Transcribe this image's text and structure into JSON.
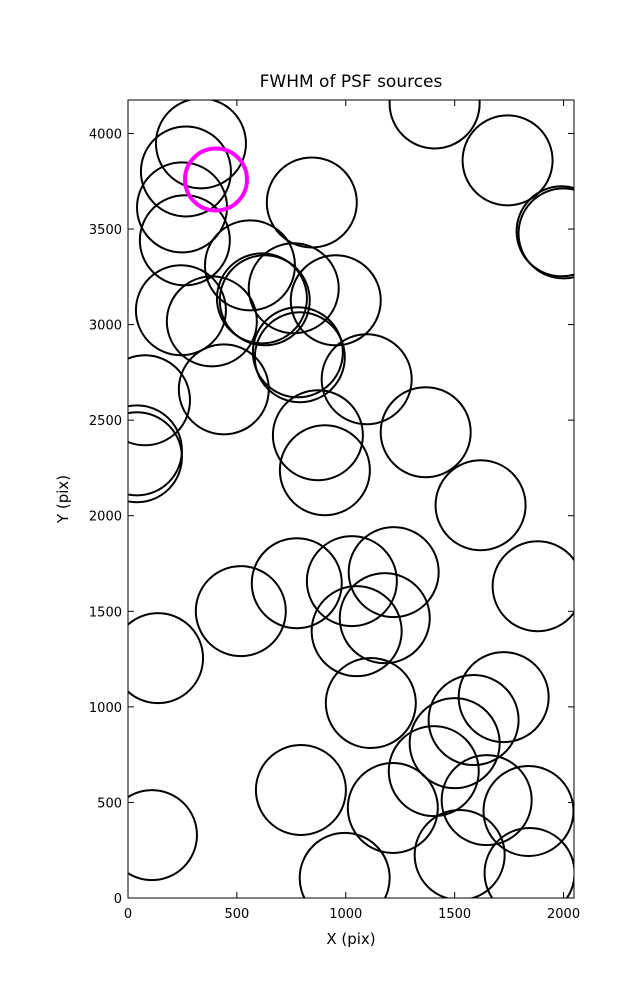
{
  "chart_data": {
    "type": "scatter",
    "title": "FWHM of PSF sources",
    "x_label": "X (pix)",
    "y_label": "Y (pix)",
    "xlim": [
      0,
      2048
    ],
    "ylim": [
      0,
      4175
    ],
    "xticks": [
      0,
      500,
      1000,
      1500,
      2000
    ],
    "yticks": [
      0,
      500,
      1000,
      1500,
      2000,
      2500,
      3000,
      3500,
      4000
    ],
    "series": [
      {
        "color": "#000000",
        "x": [
          335,
          266,
          248,
          261,
          560,
          243,
          385,
          615,
          628,
          761,
          844,
          954,
          780,
          789,
          1096,
          78,
          440,
          41,
          41,
          872,
          904,
          1367,
          1619,
          775,
          1028,
          1220,
          1179,
          1050,
          518,
          1881,
          138,
          1115,
          1725,
          1587,
          1500,
          1404,
          794,
          1647,
          1839,
          1216,
          1523,
          995,
          1844,
          110,
          1408,
          1743,
          1991,
          2000
        ],
        "y": [
          3948,
          3801,
          3613,
          3441,
          3310,
          3075,
          3017,
          3137,
          3127,
          3190,
          3639,
          3127,
          2855,
          2829,
          2714,
          2604,
          2661,
          2342,
          2306,
          2421,
          2238,
          2437,
          2055,
          1647,
          1658,
          1705,
          1464,
          1396,
          1501,
          1631,
          1255,
          1020,
          1051,
          931,
          810,
          664,
          565,
          512,
          455,
          471,
          225,
          105,
          131,
          329,
          4157,
          3859,
          3488,
          3477
        ]
      },
      {
        "color": "#ff00ff",
        "x": [
          404
        ],
        "y": [
          3759
        ]
      }
    ]
  }
}
